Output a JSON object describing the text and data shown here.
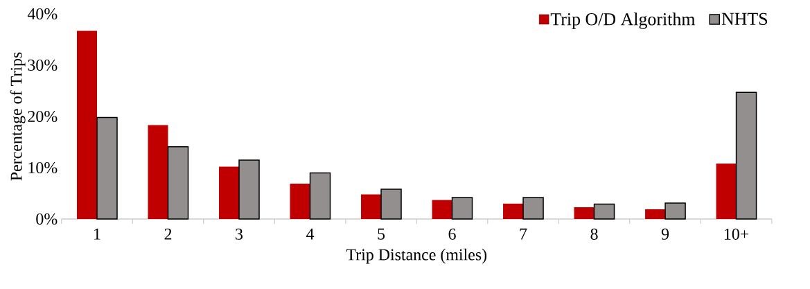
{
  "chart_data": {
    "type": "bar",
    "xlabel": "Trip Distance (miles)",
    "ylabel": "Percentage of Trips",
    "categories": [
      "1",
      "2",
      "3",
      "4",
      "5",
      "6",
      "7",
      "8",
      "9",
      "10+"
    ],
    "series": [
      {
        "name": "Trip O/D Algorithm",
        "color": "#c00000",
        "values": [
          36.7,
          18.3,
          10.2,
          6.9,
          4.8,
          3.7,
          3.0,
          2.3,
          1.9,
          10.8
        ]
      },
      {
        "name": "NHTS",
        "color": "#928f8e",
        "values": [
          19.8,
          14.1,
          11.5,
          9.0,
          5.8,
          4.2,
          4.2,
          2.9,
          3.1,
          24.7
        ]
      }
    ],
    "ylim": [
      0,
      40
    ],
    "yticks": [
      {
        "value": 0,
        "label": "0%"
      },
      {
        "value": 10,
        "label": "10%"
      },
      {
        "value": 20,
        "label": "20%"
      },
      {
        "value": 30,
        "label": "30%"
      },
      {
        "value": 40,
        "label": "40%"
      }
    ],
    "legend": "top right",
    "grid": false
  }
}
